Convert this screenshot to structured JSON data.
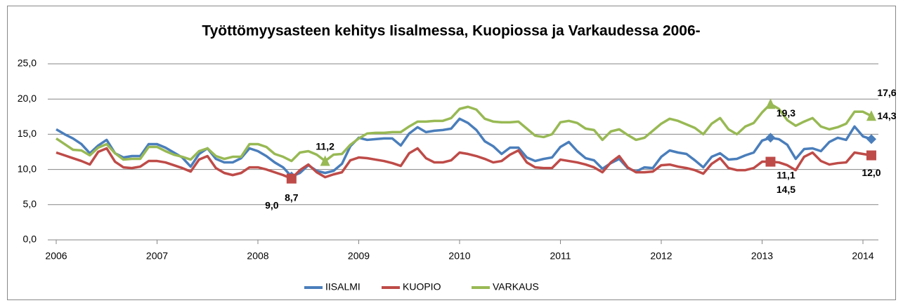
{
  "chart_data": {
    "type": "line",
    "title": "Työttömyysasteen kehitys Iisalmessa, Kuopiossa ja Varkaudessa 2006-",
    "categories": [
      "2006",
      null,
      null,
      null,
      null,
      null,
      null,
      null,
      null,
      null,
      null,
      null,
      "2007",
      null,
      null,
      null,
      null,
      null,
      null,
      null,
      null,
      null,
      null,
      null,
      "2008",
      null,
      null,
      null,
      null,
      null,
      null,
      null,
      null,
      null,
      null,
      null,
      "2009",
      null,
      null,
      null,
      null,
      null,
      null,
      null,
      null,
      null,
      null,
      null,
      "2010",
      null,
      null,
      null,
      null,
      null,
      null,
      null,
      null,
      null,
      null,
      null,
      "2011",
      null,
      null,
      null,
      null,
      null,
      null,
      null,
      null,
      null,
      null,
      null,
      "2012",
      null,
      null,
      null,
      null,
      null,
      null,
      null,
      null,
      null,
      null,
      null,
      "2013",
      null,
      null,
      null,
      null,
      null,
      null,
      null,
      null,
      null,
      null,
      null,
      "2014",
      null
    ],
    "ylim": [
      0,
      25
    ],
    "yticks": [
      {
        "value": 0,
        "label": "0,0"
      },
      {
        "value": 5,
        "label": "5,0"
      },
      {
        "value": 10,
        "label": "10,0"
      },
      {
        "value": 15,
        "label": "15,0"
      },
      {
        "value": 20,
        "label": "20,0"
      },
      {
        "value": 25,
        "label": "25,0"
      }
    ],
    "grid": true,
    "legend": "bottom",
    "series": [
      {
        "name": "IISALMI",
        "color": "#4a7ebb",
        "marker": "diamond",
        "values": [
          15.7,
          15.0,
          14.4,
          13.6,
          12.3,
          13.4,
          14.2,
          12.3,
          11.7,
          11.9,
          11.9,
          13.6,
          13.6,
          13.1,
          12.4,
          11.7,
          10.4,
          12.2,
          13.0,
          11.5,
          11.0,
          11.0,
          11.6,
          13.0,
          12.6,
          11.9,
          11.0,
          10.3,
          9.0,
          9.5,
          10.6,
          9.8,
          9.5,
          9.8,
          10.8,
          13.3,
          14.5,
          14.2,
          14.3,
          14.4,
          14.4,
          13.4,
          15.1,
          16.0,
          15.3,
          15.5,
          15.6,
          15.8,
          17.2,
          16.6,
          15.6,
          14.0,
          13.3,
          12.2,
          13.1,
          13.1,
          11.7,
          11.2,
          11.5,
          11.7,
          13.2,
          13.9,
          12.6,
          11.6,
          11.3,
          10.1,
          10.9,
          11.5,
          10.2,
          9.7,
          10.3,
          10.2,
          11.8,
          12.7,
          12.4,
          12.2,
          11.3,
          10.3,
          11.8,
          12.3,
          11.4,
          11.5,
          12.0,
          12.4,
          14.1,
          14.5,
          14.3,
          13.5,
          11.5,
          12.9,
          13.0,
          12.6,
          13.9,
          14.5,
          14.2,
          16.1,
          14.7,
          14.3
        ],
        "value_labels": [
          null,
          null,
          null,
          null,
          null,
          null,
          null,
          null,
          null,
          null,
          null,
          null,
          null,
          null,
          null,
          null,
          null,
          null,
          null,
          null,
          null,
          null,
          null,
          null,
          null,
          null,
          null,
          null,
          "9,0",
          null,
          null,
          null,
          null,
          null,
          null,
          null,
          null,
          null,
          null,
          null,
          null,
          null,
          null,
          null,
          null,
          null,
          null,
          null,
          null,
          null,
          null,
          null,
          null,
          null,
          null,
          null,
          null,
          null,
          null,
          null,
          null,
          null,
          null,
          null,
          null,
          null,
          null,
          null,
          null,
          null,
          null,
          null,
          null,
          null,
          null,
          null,
          null,
          null,
          null,
          null,
          null,
          null,
          null,
          null,
          null,
          "14,5",
          null,
          null,
          null,
          null,
          null,
          null,
          null,
          null,
          null,
          null,
          null,
          "14,3"
        ]
      },
      {
        "name": "KUOPIO",
        "color": "#be4b48",
        "marker": "square",
        "values": [
          12.4,
          12.0,
          11.6,
          11.2,
          10.7,
          12.5,
          13.0,
          11.1,
          10.3,
          10.2,
          10.4,
          11.2,
          11.2,
          11.0,
          10.6,
          10.2,
          9.7,
          11.4,
          11.9,
          10.2,
          9.5,
          9.2,
          9.5,
          10.3,
          10.3,
          10.0,
          9.6,
          9.2,
          8.7,
          9.9,
          10.7,
          9.6,
          8.9,
          9.3,
          9.6,
          11.3,
          11.7,
          11.6,
          11.4,
          11.2,
          10.9,
          10.5,
          12.3,
          13.0,
          11.6,
          11.0,
          11.0,
          11.3,
          12.4,
          12.2,
          11.9,
          11.5,
          11.0,
          11.2,
          12.1,
          12.7,
          11.0,
          10.3,
          10.2,
          10.2,
          11.4,
          11.2,
          11.0,
          10.7,
          10.3,
          9.6,
          11.0,
          11.9,
          10.3,
          9.6,
          9.6,
          9.7,
          10.6,
          10.7,
          10.4,
          10.2,
          9.9,
          9.4,
          10.8,
          11.6,
          10.2,
          9.9,
          9.9,
          10.2,
          11.1,
          11.1,
          11.0,
          10.6,
          9.9,
          11.8,
          12.4,
          11.2,
          10.7,
          10.9,
          11.0,
          12.4,
          12.2,
          12.0
        ],
        "value_labels": [
          null,
          null,
          null,
          null,
          null,
          null,
          null,
          null,
          null,
          null,
          null,
          null,
          null,
          null,
          null,
          null,
          null,
          null,
          null,
          null,
          null,
          null,
          null,
          null,
          null,
          null,
          null,
          null,
          "8,7",
          null,
          null,
          null,
          null,
          null,
          null,
          null,
          null,
          null,
          null,
          null,
          null,
          null,
          null,
          null,
          null,
          null,
          null,
          null,
          null,
          null,
          null,
          null,
          null,
          null,
          null,
          null,
          null,
          null,
          null,
          null,
          null,
          null,
          null,
          null,
          null,
          null,
          null,
          null,
          null,
          null,
          null,
          null,
          null,
          null,
          null,
          null,
          null,
          null,
          null,
          null,
          null,
          null,
          null,
          null,
          null,
          "11,1",
          null,
          null,
          null,
          null,
          null,
          null,
          null,
          null,
          null,
          null,
          null,
          "12,0"
        ]
      },
      {
        "name": "VARKAUS",
        "color": "#98b954",
        "marker": "triangle",
        "values": [
          14.4,
          13.6,
          12.8,
          12.7,
          12.0,
          13.1,
          13.6,
          12.3,
          11.4,
          11.5,
          11.5,
          13.2,
          13.2,
          12.6,
          12.1,
          11.8,
          11.4,
          12.6,
          13.0,
          11.9,
          11.5,
          11.8,
          11.8,
          13.6,
          13.6,
          13.2,
          12.2,
          11.8,
          11.2,
          12.4,
          12.6,
          12.1,
          11.2,
          12.1,
          12.2,
          13.5,
          14.4,
          15.1,
          15.2,
          15.2,
          15.3,
          15.3,
          16.1,
          16.8,
          16.8,
          16.9,
          16.9,
          17.3,
          18.6,
          18.9,
          18.5,
          17.2,
          16.8,
          16.7,
          16.7,
          16.8,
          15.8,
          14.8,
          14.6,
          15.0,
          16.7,
          16.9,
          16.6,
          15.8,
          15.6,
          14.2,
          15.4,
          15.7,
          14.9,
          14.2,
          14.5,
          15.5,
          16.5,
          17.2,
          16.9,
          16.4,
          15.9,
          15.0,
          16.5,
          17.3,
          15.7,
          15.0,
          16.1,
          16.6,
          18.1,
          19.3,
          18.6,
          17.0,
          16.2,
          16.8,
          17.3,
          16.1,
          15.7,
          16.0,
          16.5,
          18.2,
          18.2,
          17.6
        ],
        "value_labels": [
          null,
          null,
          null,
          null,
          null,
          null,
          null,
          null,
          null,
          null,
          null,
          null,
          null,
          null,
          null,
          null,
          null,
          null,
          null,
          null,
          null,
          null,
          null,
          null,
          null,
          null,
          null,
          null,
          null,
          null,
          null,
          null,
          "11,2",
          null,
          null,
          null,
          null,
          null,
          null,
          null,
          null,
          null,
          null,
          null,
          null,
          null,
          null,
          null,
          null,
          null,
          null,
          null,
          null,
          null,
          null,
          null,
          null,
          null,
          null,
          null,
          null,
          null,
          null,
          null,
          null,
          null,
          null,
          null,
          null,
          null,
          null,
          null,
          null,
          null,
          null,
          null,
          null,
          null,
          null,
          null,
          null,
          null,
          null,
          null,
          null,
          "19,3",
          null,
          null,
          null,
          null,
          null,
          null,
          null,
          null,
          null,
          null,
          null,
          "17,6"
        ]
      }
    ]
  }
}
